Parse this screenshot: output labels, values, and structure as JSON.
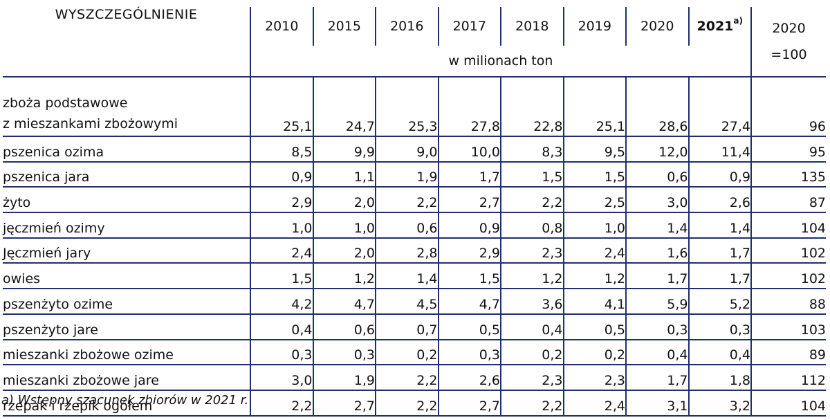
{
  "header": {
    "label": "WYSZCZEGÓLNIENIE",
    "years": [
      "2010",
      "2015",
      "2016",
      "2017",
      "2018",
      "2019",
      "2020",
      "2021"
    ],
    "last_year_note": "a)",
    "unit": "w milionach ton",
    "index_line1": "2020",
    "index_line2": "=100"
  },
  "rows": [
    {
      "name_line1": "zboża podstawowe",
      "name_line2": "z mieszankami zbożowymi",
      "values": [
        "25,1",
        "24,7",
        "25,3",
        "27,8",
        "22,8",
        "25,1",
        "28,6",
        "27,4"
      ],
      "index": "96"
    },
    {
      "name": "pszenica ozima",
      "values": [
        "8,5",
        "9,9",
        "9,0",
        "10,0",
        "8,3",
        "9,5",
        "12,0",
        "11,4"
      ],
      "index": "95"
    },
    {
      "name": "pszenica jara",
      "values": [
        "0,9",
        "1,1",
        "1,9",
        "1,7",
        "1,5",
        "1,5",
        "0,6",
        "0,9"
      ],
      "index": "135"
    },
    {
      "name": "żyto",
      "values": [
        "2,9",
        "2,0",
        "2,2",
        "2,7",
        "2,2",
        "2,5",
        "3,0",
        "2,6"
      ],
      "index": "87"
    },
    {
      "name": "jęczmień ozimy",
      "values": [
        "1,0",
        "1,0",
        "0,6",
        "0,9",
        "0,8",
        "1,0",
        "1,4",
        "1,4"
      ],
      "index": "104"
    },
    {
      "name": "Jęczmień jary",
      "values": [
        "2,4",
        "2,0",
        "2,8",
        "2,9",
        "2,3",
        "2,4",
        "1,6",
        "1,7"
      ],
      "index": "102"
    },
    {
      "name": "owies",
      "values": [
        "1,5",
        "1,2",
        "1,4",
        "1,5",
        "1,2",
        "1,2",
        "1,7",
        "1,7"
      ],
      "index": "102"
    },
    {
      "name": "pszenżyto ozime",
      "values": [
        "4,2",
        "4,7",
        "4,5",
        "4,7",
        "3,6",
        "4,1",
        "5,9",
        "5,2"
      ],
      "index": "88"
    },
    {
      "name": "pszenżyto jare",
      "values": [
        "0,4",
        "0,6",
        "0,7",
        "0,5",
        "0,4",
        "0,5",
        "0,3",
        "0,3"
      ],
      "index": "103"
    },
    {
      "name": "mieszanki zbożowe ozime",
      "values": [
        "0,3",
        "0,3",
        "0,2",
        "0,3",
        "0,2",
        "0,2",
        "0,4",
        "0,4"
      ],
      "index": "89"
    },
    {
      "name": "mieszanki zbożowe jare",
      "values": [
        "3,0",
        "1,9",
        "2,2",
        "2,6",
        "2,3",
        "2,3",
        "1,7",
        "1,8"
      ],
      "index": "112"
    },
    {
      "name": "rzepak i rzepik ogółem",
      "values": [
        "2,2",
        "2,7",
        "2,2",
        "2,7",
        "2,2",
        "2,4",
        "3,1",
        "3,2"
      ],
      "index": "104"
    }
  ],
  "footnote": "a) Wstępny szacunek zbiorów w 2021 r.",
  "colors": {
    "rule": "#1f2f6b"
  }
}
